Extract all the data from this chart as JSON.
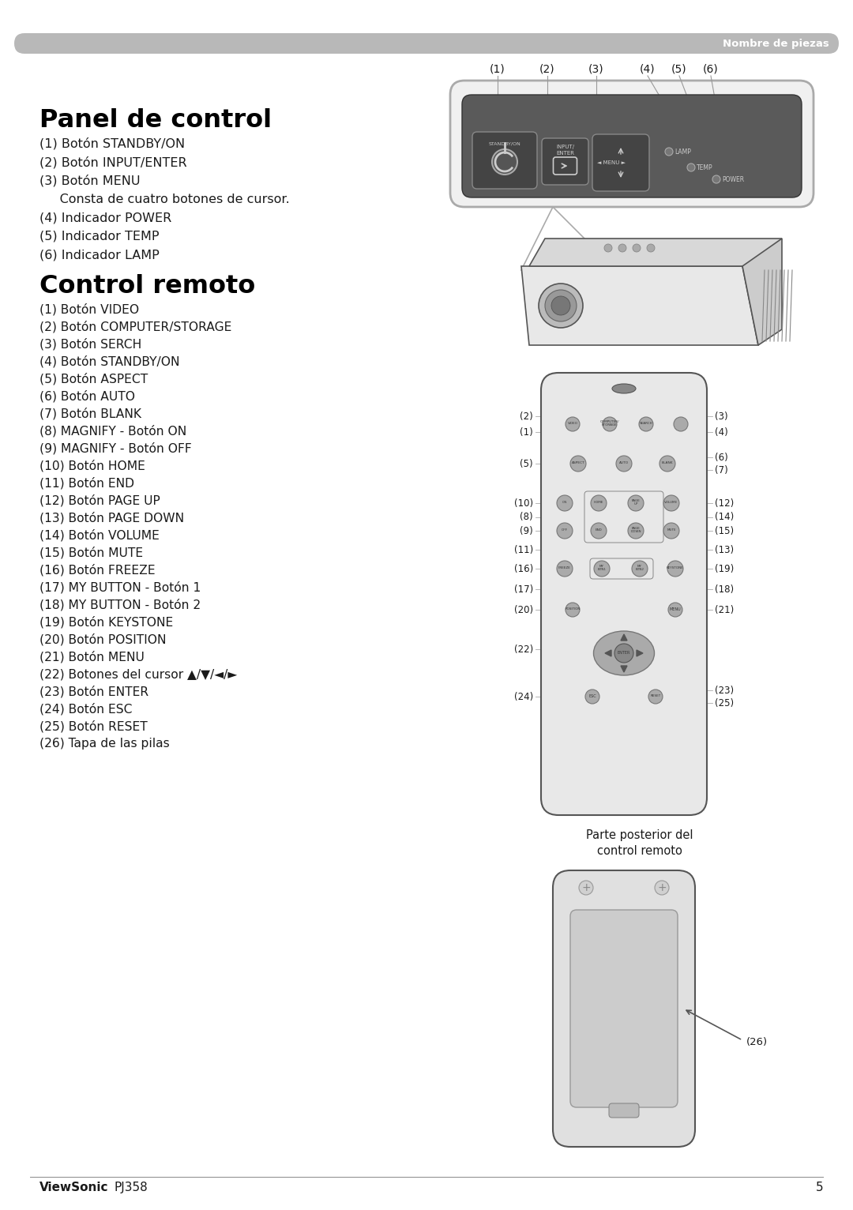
{
  "header_text": "Nombre de piezas",
  "header_bg": "#b8b8b8",
  "title1": "Panel de control",
  "title2": "Control remoto",
  "panel_items": [
    "(1) Botón STANDBY/ON",
    "(2) Botón INPUT/ENTER",
    "(3) Botón MENU",
    "     Consta de cuatro botones de cursor.",
    "(4) Indicador POWER",
    "(5) Indicador TEMP",
    "(6) Indicador LAMP"
  ],
  "remote_items": [
    "(1) Botón VIDEO",
    "(2) Botón COMPUTER/STORAGE",
    "(3) Botón SERCH",
    "(4) Botón STANDBY/ON",
    "(5) Botón ASPECT",
    "(6) Botón AUTO",
    "(7) Botón BLANK",
    "(8) MAGNIFY - Botón ON",
    "(9) MAGNIFY - Botón OFF",
    "(10) Botón HOME",
    "(11) Botón END",
    "(12) Botón PAGE UP",
    "(13) Botón PAGE DOWN",
    "(14) Botón VOLUME",
    "(15) Botón MUTE",
    "(16) Botón FREEZE",
    "(17) MY BUTTON - Botón 1",
    "(18) MY BUTTON - Botón 2",
    "(19) Botón KEYSTONE",
    "(20) Botón POSITION",
    "(21) Botón MENU",
    "(22) Botones del cursor ▲/▼/◄/►",
    "(23) Botón ENTER",
    "(24) Botón ESC",
    "(25) Botón RESET",
    "(26) Tapa de las pilas"
  ],
  "footer_brand": "ViewSonic",
  "footer_model": "PJ358",
  "footer_page": "5",
  "bg_color": "#ffffff",
  "text_color": "#1a1a1a",
  "title_color": "#000000",
  "header_text_color": "#ffffff",
  "line_color": "#888888"
}
